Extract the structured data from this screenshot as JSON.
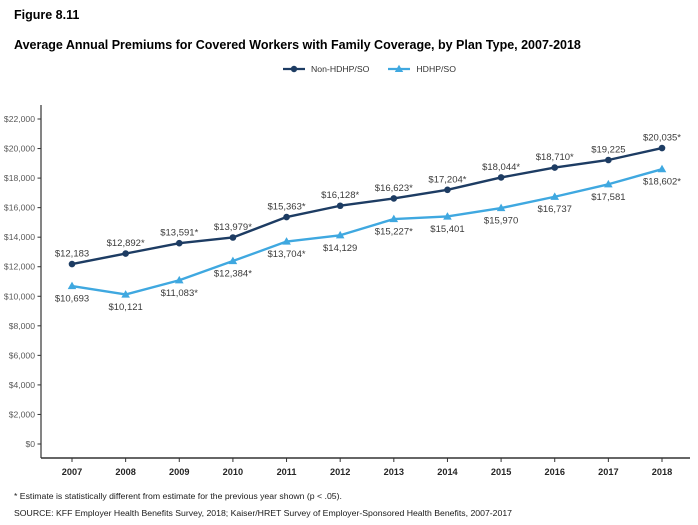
{
  "figure_label": "Figure 8.11",
  "title": "Average Annual Premiums for Covered Workers with Family Coverage, by Plan Type, 2007-2018",
  "legend": [
    {
      "label": "Non-HDHP/SO",
      "color": "#1d3c63",
      "marker": "circle"
    },
    {
      "label": "HDHP/SO",
      "color": "#3fa8e0",
      "marker": "triangle"
    }
  ],
  "footnotes": [
    "* Estimate is statistically different from estimate for the previous year shown (p < .05).",
    "SOURCE: KFF Employer Health Benefits Survey, 2018; Kaiser/HRET Survey of Employer-Sponsored Health Benefits, 2007-2017"
  ],
  "colors": {
    "non_hdhp": "#1d3c63",
    "hdhp": "#3fa8e0",
    "axis": "#333333",
    "ytick_text": "#595959",
    "xtick_text": "#262626",
    "data_label": "#3a3a3a"
  },
  "chart_data": {
    "type": "line",
    "categories": [
      "2007",
      "2008",
      "2009",
      "2010",
      "2011",
      "2012",
      "2013",
      "2014",
      "2015",
      "2016",
      "2017",
      "2018"
    ],
    "series": [
      {
        "name": "Non-HDHP/SO",
        "color": "#1d3c63",
        "marker": "circle",
        "label_position": "above",
        "values": [
          12183,
          12892,
          13591,
          13979,
          15363,
          16128,
          16623,
          17204,
          18044,
          18710,
          19225,
          20035
        ],
        "labels": [
          "$12,183",
          "$12,892*",
          "$13,591*",
          "$13,979*",
          "$15,363*",
          "$16,128*",
          "$16,623*",
          "$17,204*",
          "$18,044*",
          "$18,710*",
          "$19,225",
          "$20,035*"
        ]
      },
      {
        "name": "HDHP/SO",
        "color": "#3fa8e0",
        "marker": "triangle",
        "label_position": "below",
        "values": [
          10693,
          10121,
          11083,
          12384,
          13704,
          14129,
          15227,
          15401,
          15970,
          16737,
          17581,
          18602
        ],
        "labels": [
          "$10,693",
          "$10,121",
          "$11,083*",
          "$12,384*",
          "$13,704*",
          "$14,129",
          "$15,227*",
          "$15,401",
          "$15,970",
          "$16,737",
          "$17,581",
          "$18,602*"
        ]
      }
    ],
    "title": "Average Annual Premiums for Covered Workers with Family Coverage, by Plan Type, 2007-2018",
    "xlabel": "",
    "ylabel": "",
    "ylim": [
      0,
      22000
    ],
    "ytick_step": 2000,
    "ytick_format": "$#,###",
    "grid": false,
    "legend_position": "top"
  }
}
